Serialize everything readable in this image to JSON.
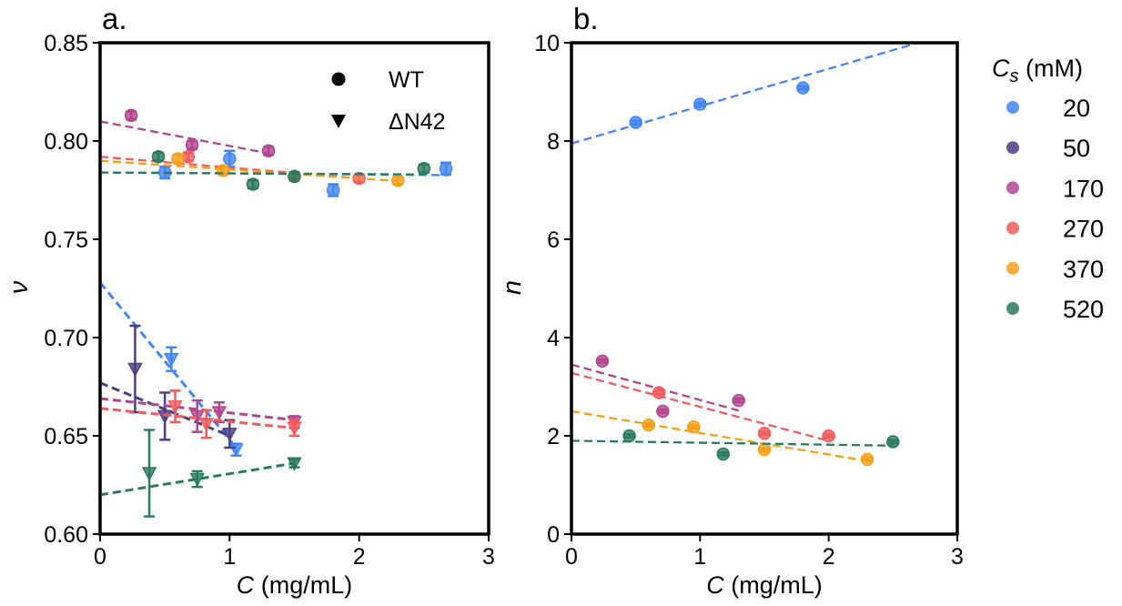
{
  "colors": {
    "20": "#4285f4",
    "50": "#4e3d82",
    "170": "#b0468f",
    "270": "#f25c5c",
    "370": "#f6a019",
    "520": "#2a7a62"
  },
  "legend": {
    "title_main": "C",
    "title_sub": "s",
    "title_unit": " (mM)",
    "entries": [
      {
        "label": "20",
        "color_key": "20"
      },
      {
        "label": "50",
        "color_key": "50"
      },
      {
        "label": "170",
        "color_key": "170"
      },
      {
        "label": "270",
        "color_key": "270"
      },
      {
        "label": "370",
        "color_key": "370"
      },
      {
        "label": "520",
        "color_key": "520"
      }
    ]
  },
  "chart_data": [
    {
      "type": "scatter",
      "panel_label": "a.",
      "xlabel_var": "C",
      "xlabel_unit": " (mg/mL)",
      "ylabel": "ν",
      "xlim": [
        0,
        3
      ],
      "ylim": [
        0.6,
        0.85
      ],
      "xticks": [
        0,
        1,
        2,
        3
      ],
      "xtick_labels": [
        "0",
        "1",
        "2",
        "3"
      ],
      "yticks": [
        0.6,
        0.65,
        0.7,
        0.75,
        0.8,
        0.85
      ],
      "ytick_labels": [
        "0.60",
        "0.65",
        "0.70",
        "0.75",
        "0.80",
        "0.85"
      ],
      "marker_legend": [
        {
          "label": "WT",
          "marker": "circle"
        },
        {
          "label": "ΔN42",
          "marker": "triangle-down"
        }
      ],
      "series": [
        {
          "name": "20",
          "marker": "circle",
          "color_key": "20",
          "points": [
            {
              "x": 0.5,
              "y": 0.784,
              "err": 0.003
            },
            {
              "x": 1.0,
              "y": 0.791,
              "err": 0.004
            },
            {
              "x": 1.8,
              "y": 0.775,
              "err": 0.003
            },
            {
              "x": 2.67,
              "y": 0.786,
              "err": 0.003
            }
          ],
          "fit": {
            "intercept": 0.784,
            "slope": -0.0005,
            "x_range": [
              0,
              2.7
            ]
          }
        },
        {
          "name": "170",
          "marker": "circle",
          "color_key": "170",
          "points": [
            {
              "x": 0.24,
              "y": 0.813,
              "err": 0.002
            },
            {
              "x": 0.71,
              "y": 0.798,
              "err": 0.002
            },
            {
              "x": 1.3,
              "y": 0.795,
              "err": 0.002
            }
          ],
          "fit": {
            "intercept": 0.81,
            "slope": -0.0125,
            "x_range": [
              0,
              1.3
            ]
          }
        },
        {
          "name": "270",
          "marker": "circle",
          "color_key": "270",
          "points": [
            {
              "x": 0.68,
              "y": 0.792,
              "err": 0.002
            },
            {
              "x": 1.5,
              "y": 0.782,
              "err": 0.002
            },
            {
              "x": 2.0,
              "y": 0.781,
              "err": 0.002
            }
          ],
          "fit": {
            "intercept": 0.792,
            "slope": -0.0055,
            "x_range": [
              0,
              2.0
            ]
          }
        },
        {
          "name": "370",
          "marker": "circle",
          "color_key": "370",
          "points": [
            {
              "x": 0.6,
              "y": 0.791,
              "err": 0.002
            },
            {
              "x": 0.95,
              "y": 0.785,
              "err": 0.002
            },
            {
              "x": 1.5,
              "y": 0.782,
              "err": 0.002
            },
            {
              "x": 2.3,
              "y": 0.78,
              "err": 0.002
            }
          ],
          "fit": {
            "intercept": 0.79,
            "slope": -0.0045,
            "x_range": [
              0,
              2.3
            ]
          }
        },
        {
          "name": "520",
          "marker": "circle",
          "color_key": "520",
          "points": [
            {
              "x": 0.45,
              "y": 0.792,
              "err": 0.002
            },
            {
              "x": 1.18,
              "y": 0.778,
              "err": 0.002
            },
            {
              "x": 1.5,
              "y": 0.782,
              "err": 0.002
            },
            {
              "x": 2.5,
              "y": 0.786,
              "err": 0.002
            }
          ],
          "fit": {
            "intercept": 0.784,
            "slope": -0.0004,
            "x_range": [
              0,
              2.5
            ]
          }
        },
        {
          "name": "20",
          "marker": "triangle-down",
          "color_key": "20",
          "points": [
            {
              "x": 0.55,
              "y": 0.689,
              "err": 0.006
            },
            {
              "x": 1.05,
              "y": 0.643,
              "err": 0.003
            }
          ],
          "fit": {
            "intercept": 0.728,
            "slope": -0.08,
            "x_range": [
              0,
              1.05
            ]
          }
        },
        {
          "name": "50",
          "marker": "triangle-down",
          "color_key": "50",
          "points": [
            {
              "x": 0.27,
              "y": 0.684,
              "err": 0.022
            },
            {
              "x": 0.5,
              "y": 0.66,
              "err": 0.012
            },
            {
              "x": 1.0,
              "y": 0.651,
              "err": 0.007
            }
          ],
          "fit": {
            "intercept": 0.677,
            "slope": -0.027,
            "x_range": [
              0,
              1.0
            ]
          }
        },
        {
          "name": "170",
          "marker": "triangle-down",
          "color_key": "170",
          "points": [
            {
              "x": 0.75,
              "y": 0.66,
              "err": 0.008
            },
            {
              "x": 0.92,
              "y": 0.662,
              "err": 0.005
            },
            {
              "x": 1.5,
              "y": 0.657,
              "err": 0.003
            }
          ],
          "fit": {
            "intercept": 0.669,
            "slope": -0.0073,
            "x_range": [
              0,
              1.5
            ]
          }
        },
        {
          "name": "270",
          "marker": "triangle-down",
          "color_key": "270",
          "points": [
            {
              "x": 0.58,
              "y": 0.665,
              "err": 0.008
            },
            {
              "x": 0.82,
              "y": 0.656,
              "err": 0.007
            },
            {
              "x": 1.5,
              "y": 0.654,
              "err": 0.004
            }
          ],
          "fit": {
            "intercept": 0.664,
            "slope": -0.0067,
            "x_range": [
              0,
              1.5
            ]
          }
        },
        {
          "name": "520",
          "marker": "triangle-down",
          "color_key": "520",
          "points": [
            {
              "x": 0.38,
              "y": 0.631,
              "err": 0.022
            },
            {
              "x": 0.75,
              "y": 0.628,
              "err": 0.004
            },
            {
              "x": 1.5,
              "y": 0.636,
              "err": 0.002
            }
          ],
          "fit": {
            "intercept": 0.62,
            "slope": 0.0107,
            "x_range": [
              0,
              1.5
            ]
          }
        }
      ]
    },
    {
      "type": "scatter",
      "panel_label": "b.",
      "xlabel_var": "C",
      "xlabel_unit": " (mg/mL)",
      "ylabel": "n",
      "xlim": [
        0,
        3
      ],
      "ylim": [
        0,
        10
      ],
      "xticks": [
        0,
        1,
        2,
        3
      ],
      "xtick_labels": [
        "0",
        "1",
        "2",
        "3"
      ],
      "yticks": [
        0,
        2,
        4,
        6,
        8,
        10
      ],
      "ytick_labels": [
        "0",
        "2",
        "4",
        "6",
        "8",
        "10"
      ],
      "series": [
        {
          "name": "20",
          "marker": "circle",
          "color_key": "20",
          "points": [
            {
              "x": 0.5,
              "y": 8.38,
              "err": 0.03
            },
            {
              "x": 1.0,
              "y": 8.75,
              "err": 0.03
            },
            {
              "x": 1.8,
              "y": 9.08,
              "err": 0.03
            }
          ],
          "fit": {
            "intercept": 7.95,
            "slope": 0.76,
            "x_range": [
              0,
              2.7
            ]
          }
        },
        {
          "name": "170",
          "marker": "circle",
          "color_key": "170",
          "points": [
            {
              "x": 0.24,
              "y": 3.52,
              "err": 0.03
            },
            {
              "x": 0.71,
              "y": 2.5,
              "err": 0.03
            },
            {
              "x": 1.3,
              "y": 2.72,
              "err": 0.03
            }
          ],
          "fit": {
            "intercept": 3.45,
            "slope": -0.72,
            "x_range": [
              0,
              1.3
            ]
          }
        },
        {
          "name": "270",
          "marker": "circle",
          "color_key": "270",
          "points": [
            {
              "x": 0.68,
              "y": 2.88,
              "err": 0.03
            },
            {
              "x": 1.5,
              "y": 2.05,
              "err": 0.03
            },
            {
              "x": 2.0,
              "y": 2.0,
              "err": 0.03
            }
          ],
          "fit": {
            "intercept": 3.28,
            "slope": -0.69,
            "x_range": [
              0,
              2.0
            ]
          }
        },
        {
          "name": "370",
          "marker": "circle",
          "color_key": "370",
          "points": [
            {
              "x": 0.6,
              "y": 2.22,
              "err": 0.03
            },
            {
              "x": 0.95,
              "y": 2.18,
              "err": 0.03
            },
            {
              "x": 1.5,
              "y": 1.72,
              "err": 0.03
            },
            {
              "x": 2.3,
              "y": 1.52,
              "err": 0.03
            }
          ],
          "fit": {
            "intercept": 2.5,
            "slope": -0.44,
            "x_range": [
              0,
              2.3
            ]
          }
        },
        {
          "name": "520",
          "marker": "circle",
          "color_key": "520",
          "points": [
            {
              "x": 0.45,
              "y": 2.0,
              "err": 0.03
            },
            {
              "x": 1.18,
              "y": 1.63,
              "err": 0.03
            },
            {
              "x": 2.5,
              "y": 1.88,
              "err": 0.03
            }
          ],
          "fit": {
            "intercept": 1.9,
            "slope": -0.04,
            "x_range": [
              0,
              2.5
            ]
          }
        }
      ]
    }
  ]
}
